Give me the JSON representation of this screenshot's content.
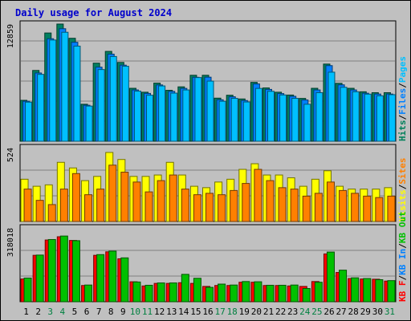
{
  "chart_data": {
    "type": "bar",
    "title": "Daily usage for August 2024",
    "categories": [
      "1",
      "2",
      "3",
      "4",
      "5",
      "6",
      "7",
      "8",
      "9",
      "10",
      "11",
      "12",
      "13",
      "14",
      "15",
      "16",
      "17",
      "18",
      "19",
      "20",
      "21",
      "22",
      "23",
      "24",
      "25",
      "26",
      "27",
      "28",
      "29",
      "30",
      "31"
    ],
    "weekend_days": [
      "3",
      "4",
      "10",
      "11",
      "17",
      "18",
      "24",
      "25",
      "31"
    ],
    "colors": {
      "hits": "#008040",
      "files": "#0080ff",
      "pages": "#00c0ff",
      "visits": "#ffff00",
      "sites": "#ff8000",
      "kbytes": "#ff0000",
      "kb_in": "#00c000",
      "kb_out": "#00c000",
      "weekday_label": "#000000",
      "weekend_label": "#008040",
      "panel_bg": "#c0c0c0",
      "grid": "#808080"
    },
    "panels": [
      {
        "id": "hits-files-pages",
        "max_label": "12859",
        "max": 12859,
        "legend": [
          {
            "text": "Hits",
            "color": "#00805a"
          },
          {
            "text": "/",
            "color": "#000000"
          },
          {
            "text": "Files",
            "color": "#0080ff"
          },
          {
            "text": "/",
            "color": "#000000"
          },
          {
            "text": "Pages",
            "color": "#00c0ff"
          }
        ],
        "series": [
          {
            "name": "Hits",
            "color": "#008060",
            "values": [
              4490,
              7770,
              11880,
              12860,
              11300,
              4060,
              8570,
              9860,
              8650,
              5810,
              5380,
              6380,
              5590,
              5970,
              7240,
              7240,
              4730,
              5050,
              4640,
              6460,
              5850,
              5380,
              5070,
              4700,
              5810,
              8470,
              6360,
              5810,
              5430,
              5330,
              5330
            ]
          },
          {
            "name": "Files",
            "color": "#0080ff",
            "values": [
              4390,
              7490,
              11250,
              12350,
              10860,
              3950,
              8130,
              9560,
              8350,
              5630,
              5250,
              6180,
              5470,
              5800,
              7020,
              7030,
              4550,
              4880,
              4470,
              6290,
              5690,
              5230,
              4930,
              4530,
              5630,
              8300,
              6190,
              5630,
              5270,
              5180,
              5180
            ]
          },
          {
            "name": "Pages",
            "color": "#00c0ff",
            "values": [
              4290,
              7340,
              11110,
              11960,
              10440,
              3860,
              7870,
              9300,
              8230,
              5500,
              5050,
              6070,
              5280,
              5630,
              6990,
              6600,
              4390,
              4710,
              4310,
              5800,
              5480,
              5080,
              4710,
              4060,
              5330,
              7580,
              5920,
              5430,
              5170,
              4990,
              5110
            ]
          }
        ]
      },
      {
        "id": "visits-sites",
        "max_label": "524",
        "max": 524,
        "legend": [
          {
            "text": "Visits",
            "color": "#ffff00"
          },
          {
            "text": "/",
            "color": "#000000"
          },
          {
            "text": "Sites",
            "color": "#ff8000"
          }
        ],
        "series": [
          {
            "name": "Visits",
            "color": "#ffff00",
            "values": [
              300,
              250,
              260,
              420,
              380,
              290,
              320,
              490,
              440,
              320,
              320,
              330,
              420,
              330,
              250,
              240,
              280,
              300,
              370,
              410,
              330,
              330,
              310,
              250,
              300,
              360,
              250,
              230,
              230,
              230,
              240
            ]
          },
          {
            "name": "Sites",
            "color": "#ff8000",
            "values": [
              230,
              150,
              120,
              230,
              340,
              190,
              230,
              400,
              350,
              280,
              210,
              290,
              330,
              230,
              190,
              200,
              190,
              220,
              270,
              370,
              290,
              240,
              230,
              180,
              200,
              280,
              220,
              200,
              180,
              170,
              180
            ]
          }
        ]
      },
      {
        "id": "kbytes",
        "max_label": "318018",
        "max": 318018,
        "legend": [
          {
            "text": "KB F",
            "color": "#ff0000"
          },
          {
            "text": "/",
            "color": "#000000"
          },
          {
            "text": "KB In",
            "color": "#0080ff"
          },
          {
            "text": "/",
            "color": "#000000"
          },
          {
            "text": "KB Out",
            "color": "#00c000"
          }
        ],
        "series": [
          {
            "name": "KB F",
            "color": "#ff0000",
            "values": [
              98000,
              200000,
              266000,
              280000,
              264000,
              70000,
              200000,
              215000,
              185000,
              86000,
              68000,
              79000,
              79000,
              82000,
              79000,
              66000,
              70000,
              70000,
              84000,
              84000,
              70000,
              70000,
              68000,
              66000,
              87000,
              206000,
              126000,
              100000,
              98000,
              97000,
              89000
            ]
          },
          {
            "name": "KB Out",
            "color": "#00c000",
            "values": [
              102000,
              201000,
              268000,
              283000,
              263000,
              72000,
              203000,
              218000,
              189000,
              85000,
              71000,
              81000,
              81000,
              118000,
              101000,
              62000,
              76000,
              72000,
              87000,
              86000,
              71000,
              71000,
              72000,
              57000,
              84000,
              214000,
              136000,
              103000,
              100000,
              95000,
              91000
            ]
          }
        ]
      }
    ]
  }
}
